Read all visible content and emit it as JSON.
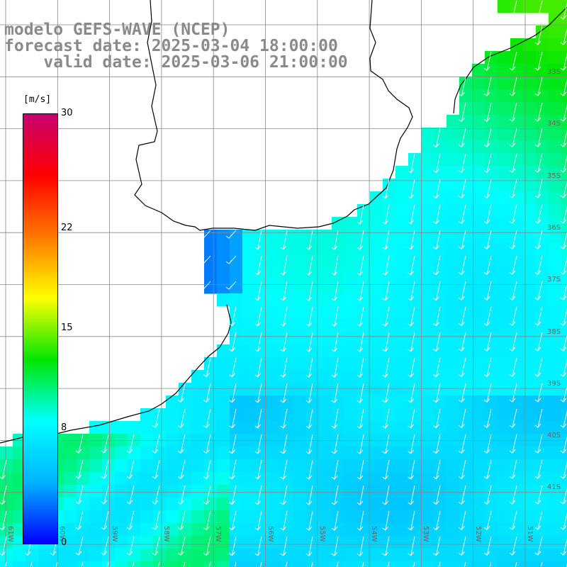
{
  "title": {
    "line1": "modelo GEFS-WAVE (NCEP)",
    "line2": "forecast date: 2025-03-04 18:00:00",
    "line3": "    valid date: 2025-03-06 21:00:00"
  },
  "colorbar": {
    "unit": "[m/s]",
    "min": 0,
    "max": 30,
    "ticks": [
      "30",
      "22",
      "15",
      "8",
      "0"
    ],
    "tick_values": [
      30,
      22,
      15,
      8,
      0
    ],
    "stops": [
      "#0000ff",
      "#00b4ff",
      "#00ffff",
      "#00e600",
      "#ffff00",
      "#ff7800",
      "#ff0000",
      "#c8006e"
    ]
  },
  "map": {
    "longitudes": [
      "61W",
      "60W",
      "59W",
      "58W",
      "57W",
      "56W",
      "55W",
      "54W",
      "53W",
      "52W",
      "51W"
    ],
    "latitudes": [
      "33S",
      "34S",
      "35S",
      "36S",
      "37S",
      "38S",
      "39S",
      "40S",
      "41S"
    ],
    "wind_direction": "southwestward arrows over ocean"
  }
}
